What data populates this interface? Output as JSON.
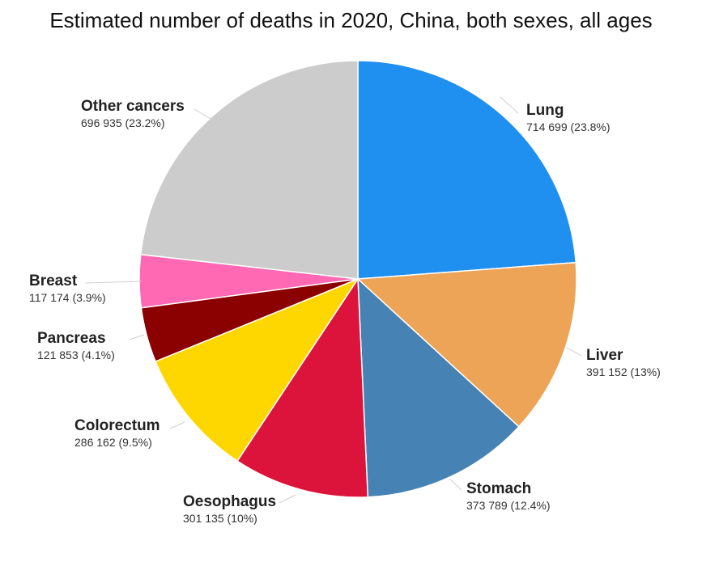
{
  "chart_data": {
    "type": "pie",
    "title": "Estimated number of deaths in 2020, China, both sexes, all ages",
    "slices": [
      {
        "label": "Lung",
        "value": 714699,
        "value_text": "714 699 (23.8%)",
        "color": "#1f8ff0"
      },
      {
        "label": "Liver",
        "value": 391152,
        "value_text": "391 152 (13%)",
        "color": "#eda457"
      },
      {
        "label": "Stomach",
        "value": 373789,
        "value_text": "373 789 (12.4%)",
        "color": "#4682b4"
      },
      {
        "label": "Oesophagus",
        "value": 301135,
        "value_text": "301 135 (10%)",
        "color": "#dc143c"
      },
      {
        "label": "Colorectum",
        "value": 286162,
        "value_text": "286 162 (9.5%)",
        "color": "#ffd700"
      },
      {
        "label": "Pancreas",
        "value": 121853,
        "value_text": "121 853 (4.1%)",
        "color": "#8b0000"
      },
      {
        "label": "Breast",
        "value": 117174,
        "value_text": "117 174 (3.9%)",
        "color": "#ff69b4"
      },
      {
        "label": "Other cancers",
        "value": 696935,
        "value_text": "696 935 (23.2%)",
        "color": "#cccccc"
      }
    ]
  }
}
